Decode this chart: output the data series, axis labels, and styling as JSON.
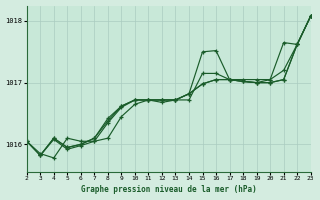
{
  "title": "Graphe pression niveau de la mer (hPa)",
  "background_color": "#d4ece0",
  "plot_bg_color": "#c8e8d8",
  "grid_color": "#aaccc0",
  "line_color": "#1a5c2a",
  "xlim": [
    2,
    23
  ],
  "ylim": [
    1015.55,
    1018.25
  ],
  "yticks": [
    1016,
    1017,
    1018
  ],
  "xticks": [
    2,
    3,
    4,
    5,
    6,
    7,
    8,
    9,
    10,
    11,
    12,
    13,
    14,
    15,
    16,
    17,
    18,
    19,
    20,
    21,
    22,
    23
  ],
  "series": [
    {
      "x": [
        2,
        3,
        4,
        5,
        6,
        7,
        8,
        9,
        10,
        11,
        12,
        13,
        14,
        15,
        16,
        17,
        18,
        19,
        20,
        21,
        22,
        23
      ],
      "y": [
        1016.05,
        1015.85,
        1015.78,
        1016.1,
        1016.05,
        1016.05,
        1016.1,
        1016.45,
        1016.65,
        1016.72,
        1016.68,
        1016.72,
        1016.72,
        1017.15,
        1017.15,
        1017.05,
        1017.05,
        1017.05,
        1017.05,
        1017.65,
        1017.62,
        1018.08
      ]
    },
    {
      "x": [
        2,
        3,
        4,
        5,
        6,
        7,
        8,
        9,
        10,
        11,
        12,
        13,
        14,
        15,
        16,
        17,
        18,
        19,
        20,
        21,
        22,
        23
      ],
      "y": [
        1016.05,
        1015.82,
        1016.08,
        1015.92,
        1015.98,
        1016.05,
        1016.35,
        1016.6,
        1016.72,
        1016.72,
        1016.72,
        1016.72,
        1016.82,
        1016.98,
        1017.05,
        1017.05,
        1017.02,
        1017.0,
        1017.0,
        1017.05,
        1017.62,
        1018.08
      ]
    },
    {
      "x": [
        2,
        3,
        4,
        5,
        6,
        7,
        8,
        9,
        10,
        11,
        12,
        13,
        14,
        15,
        16,
        17,
        18,
        19,
        20,
        21,
        22,
        23
      ],
      "y": [
        1016.05,
        1015.82,
        1016.1,
        1015.95,
        1016.0,
        1016.1,
        1016.38,
        1016.62,
        1016.72,
        1016.72,
        1016.72,
        1016.72,
        1016.82,
        1016.98,
        1017.05,
        1017.05,
        1017.02,
        1017.0,
        1017.0,
        1017.05,
        1017.62,
        1018.08
      ]
    },
    {
      "x": [
        3,
        4,
        5,
        6,
        7,
        8,
        9,
        10,
        11,
        12,
        13,
        14,
        15,
        16,
        17,
        18,
        19,
        20,
        21,
        22,
        23
      ],
      "y": [
        1015.82,
        1016.1,
        1015.95,
        1016.0,
        1016.1,
        1016.42,
        1016.62,
        1016.72,
        1016.72,
        1016.72,
        1016.72,
        1016.82,
        1017.5,
        1017.52,
        1017.05,
        1017.02,
        1017.0,
        1017.05,
        1017.2,
        1017.62,
        1018.08
      ]
    }
  ]
}
